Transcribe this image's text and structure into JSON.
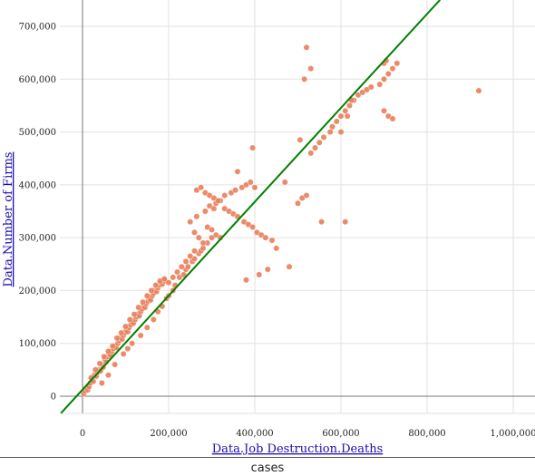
{
  "chart_data": {
    "type": "scatter",
    "xlabel": "Data.Job Destruction.Deaths",
    "ylabel": "Data.Number of Firms",
    "xlim": [
      -40000,
      1040000
    ],
    "ylim": [
      -35000,
      750000
    ],
    "xticks": [
      0,
      200000,
      400000,
      600000,
      800000,
      1000000
    ],
    "yticks": [
      0,
      100000,
      200000,
      300000,
      400000,
      500000,
      600000,
      700000
    ],
    "xtick_labels": [
      "0",
      "200,000",
      "400,000",
      "600,000",
      "800,000",
      "1,000,000"
    ],
    "ytick_labels": [
      "0",
      "100,000",
      "200,000",
      "300,000",
      "400,000",
      "500,000",
      "600,000",
      "700,000"
    ],
    "grid": true,
    "point_color": "#e8805c",
    "trendline_color": "#008000",
    "trendline": {
      "x": [
        -50000,
        830000
      ],
      "y": [
        -32000,
        750000
      ]
    },
    "x": [
      3000,
      6000,
      9000,
      12000,
      15000,
      18000,
      22000,
      25000,
      28000,
      32000,
      35000,
      38000,
      42000,
      45000,
      48000,
      52000,
      55000,
      58000,
      62000,
      65000,
      68000,
      72000,
      75000,
      78000,
      82000,
      85000,
      88000,
      92000,
      95000,
      98000,
      102000,
      105000,
      108000,
      112000,
      115000,
      118000,
      122000,
      125000,
      128000,
      132000,
      135000,
      138000,
      142000,
      145000,
      148000,
      152000,
      155000,
      158000,
      162000,
      165000,
      168000,
      172000,
      175000,
      178000,
      182000,
      185000,
      188000,
      192000,
      20000,
      30000,
      40000,
      50000,
      60000,
      70000,
      80000,
      90000,
      100000,
      110000,
      120000,
      130000,
      140000,
      150000,
      160000,
      170000,
      180000,
      190000,
      45000,
      60000,
      75000,
      95000,
      105000,
      115000,
      135000,
      150000,
      165000,
      175000,
      185000,
      195000,
      200000,
      210000,
      215000,
      225000,
      235000,
      240000,
      245000,
      255000,
      260000,
      270000,
      275000,
      280000,
      290000,
      300000,
      250000,
      265000,
      285000,
      295000,
      305000,
      310000,
      320000,
      330000,
      345000,
      355000,
      370000,
      380000,
      390000,
      400000,
      260000,
      270000,
      280000,
      290000,
      300000,
      310000,
      320000,
      265000,
      275000,
      285000,
      295000,
      305000,
      315000,
      330000,
      340000,
      350000,
      360000,
      375000,
      385000,
      395000,
      405000,
      415000,
      425000,
      440000,
      450000,
      200000,
      210000,
      220000,
      230000,
      240000,
      250000,
      260000,
      380000,
      410000,
      430000,
      480000,
      500000,
      510000,
      520000,
      530000,
      540000,
      550000,
      560000,
      575000,
      580000,
      590000,
      600000,
      610000,
      620000,
      630000,
      640000,
      650000,
      660000,
      670000,
      690000,
      700000,
      710000,
      720000,
      730000,
      700000,
      710000,
      720000,
      505000,
      515000,
      520000,
      530000,
      600000,
      615000,
      625000,
      700000,
      705000,
      920000,
      610000,
      360000,
      395000,
      470000,
      555000
    ],
    "y": [
      5000,
      10000,
      15000,
      12000,
      18000,
      25000,
      30000,
      28000,
      40000,
      38000,
      45000,
      50000,
      48000,
      60000,
      55000,
      70000,
      65000,
      75000,
      80000,
      78000,
      85000,
      90000,
      95000,
      92000,
      100000,
      105000,
      110000,
      108000,
      115000,
      120000,
      125000,
      122000,
      130000,
      135000,
      140000,
      138000,
      145000,
      150000,
      155000,
      152000,
      160000,
      165000,
      170000,
      168000,
      175000,
      180000,
      185000,
      182000,
      190000,
      195000,
      200000,
      198000,
      205000,
      210000,
      215000,
      212000,
      220000,
      218000,
      35000,
      50000,
      62000,
      75000,
      85000,
      95000,
      110000,
      120000,
      132000,
      145000,
      155000,
      168000,
      178000,
      190000,
      200000,
      210000,
      218000,
      222000,
      25000,
      40000,
      60000,
      80000,
      90000,
      100000,
      115000,
      130000,
      145000,
      160000,
      170000,
      185000,
      190000,
      200000,
      210000,
      225000,
      230000,
      240000,
      245000,
      255000,
      260000,
      270000,
      275000,
      280000,
      290000,
      300000,
      330000,
      340000,
      350000,
      360000,
      355000,
      365000,
      370000,
      380000,
      385000,
      390000,
      395000,
      400000,
      405000,
      395000,
      310000,
      300000,
      290000,
      320000,
      315000,
      305000,
      300000,
      390000,
      395000,
      385000,
      380000,
      375000,
      370000,
      355000,
      350000,
      345000,
      340000,
      330000,
      325000,
      320000,
      310000,
      305000,
      300000,
      295000,
      280000,
      215000,
      225000,
      235000,
      245000,
      255000,
      265000,
      275000,
      220000,
      230000,
      240000,
      245000,
      365000,
      375000,
      380000,
      460000,
      470000,
      480000,
      490000,
      500000,
      510000,
      520000,
      530000,
      540000,
      550000,
      560000,
      570000,
      575000,
      580000,
      585000,
      590000,
      600000,
      610000,
      620000,
      630000,
      540000,
      530000,
      525000,
      485000,
      600000,
      660000,
      620000,
      500000,
      530000,
      560000,
      630000,
      635000,
      578000,
      330000,
      425000,
      470000,
      405000,
      330000
    ]
  }
}
